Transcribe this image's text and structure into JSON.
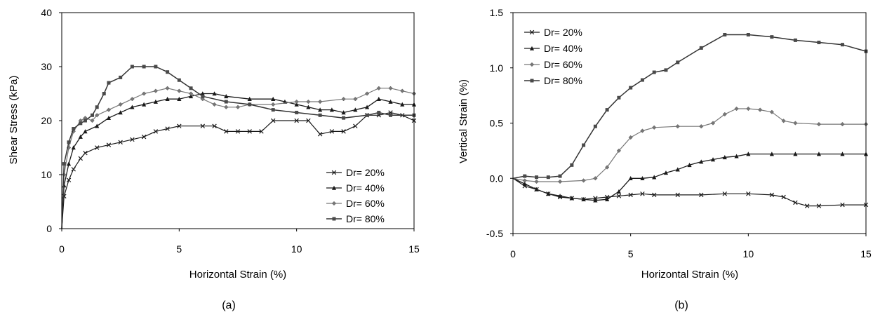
{
  "chart_data": [
    {
      "type": "line",
      "panel_label": "(a)",
      "xlabel": "Horizontal Strain (%)",
      "ylabel": "Shear Stress (kPa)",
      "xlim": [
        0,
        15
      ],
      "ylim": [
        0,
        40
      ],
      "xticks": [
        "0",
        "5",
        "10",
        "15"
      ],
      "yticks": [
        "0",
        "10",
        "20",
        "30",
        "40"
      ],
      "grid": false,
      "legend_position": "bottom-right",
      "series": [
        {
          "name": "Dr= 20%",
          "marker": "x",
          "x": [
            0,
            0.1,
            0.3,
            0.5,
            0.8,
            1.0,
            1.5,
            2.0,
            2.5,
            3.0,
            3.5,
            4.0,
            4.5,
            5.0,
            6.0,
            6.5,
            7.0,
            7.5,
            8.0,
            8.5,
            9.0,
            10.0,
            10.5,
            11.0,
            11.5,
            12.0,
            12.5,
            13.0,
            13.5,
            14.0,
            14.5,
            15.0
          ],
          "y": [
            0,
            6,
            9,
            11,
            13,
            14,
            15,
            15.5,
            16,
            16.5,
            17,
            18,
            18.5,
            19,
            19,
            19,
            18,
            18,
            18,
            18,
            20,
            20,
            20,
            17.5,
            18,
            18,
            19,
            21,
            21,
            21.5,
            21,
            20
          ]
        },
        {
          "name": "Dr= 40%",
          "marker": "triangle",
          "x": [
            0,
            0.1,
            0.3,
            0.5,
            0.8,
            1.0,
            1.5,
            2.0,
            2.5,
            3.0,
            3.5,
            4.0,
            4.5,
            5.0,
            5.5,
            6.0,
            6.5,
            7.0,
            8.0,
            9.0,
            9.5,
            10.0,
            10.5,
            11.0,
            11.5,
            12.0,
            12.5,
            13.0,
            13.5,
            14.0,
            14.5,
            15.0
          ],
          "y": [
            0,
            8,
            12,
            15,
            17,
            18,
            19,
            20.5,
            21.5,
            22.5,
            23,
            23.5,
            24,
            24,
            24.5,
            25,
            25,
            24.5,
            24,
            24,
            23.5,
            23,
            22.5,
            22,
            22,
            21.5,
            22,
            22.5,
            24,
            23.5,
            23,
            23
          ]
        },
        {
          "name": "Dr= 60%",
          "marker": "diamond",
          "x": [
            0,
            0.1,
            0.3,
            0.5,
            0.8,
            1.0,
            1.3,
            1.5,
            2.0,
            2.5,
            3.0,
            3.5,
            4.0,
            4.5,
            5.0,
            5.5,
            6.0,
            6.5,
            7.0,
            7.5,
            8.0,
            9.0,
            10.0,
            10.5,
            11.0,
            12.0,
            12.5,
            13.0,
            13.5,
            14.0,
            14.5,
            15.0
          ],
          "y": [
            0,
            10,
            15,
            18,
            20,
            20.5,
            20,
            21,
            22,
            23,
            24,
            25,
            25.5,
            26,
            25.5,
            25,
            24,
            23,
            22.5,
            22.5,
            23,
            23,
            23.5,
            23.5,
            23.5,
            24,
            24,
            25,
            26,
            26,
            25.5,
            25
          ]
        },
        {
          "name": "Dr= 80%",
          "marker": "square",
          "x": [
            0,
            0.1,
            0.3,
            0.5,
            0.8,
            1.0,
            1.3,
            1.5,
            1.8,
            2.0,
            2.5,
            3.0,
            3.5,
            4.0,
            4.5,
            5.0,
            5.5,
            6.0,
            7.0,
            8.0,
            9.0,
            10.0,
            11.0,
            12.0,
            13.0,
            13.5,
            14.0,
            15.0
          ],
          "y": [
            0,
            12,
            16,
            18.5,
            19.5,
            20,
            21,
            22.5,
            25,
            27,
            28,
            30,
            30,
            30,
            29,
            27.5,
            26,
            24.5,
            23.5,
            23,
            22,
            21.5,
            21,
            20.5,
            21,
            21.5,
            21,
            21
          ]
        }
      ]
    },
    {
      "type": "line",
      "panel_label": "(b)",
      "xlabel": "Horizontal Strain (%)",
      "ylabel": "Vertical Strain (%)",
      "xlim": [
        0,
        15
      ],
      "ylim": [
        -0.5,
        1.5
      ],
      "xticks": [
        "0",
        "5",
        "10",
        "15"
      ],
      "yticks": [
        "-0.5",
        "0.0",
        "0.5",
        "1.0",
        "1.5"
      ],
      "grid": false,
      "legend_position": "top-left",
      "series": [
        {
          "name": "Dr= 20%",
          "marker": "x",
          "x": [
            0,
            0.5,
            1.0,
            1.5,
            2.0,
            2.5,
            3.0,
            3.5,
            4.0,
            4.5,
            5.0,
            5.5,
            6.0,
            7.0,
            8.0,
            9.0,
            10.0,
            11.0,
            11.5,
            12.0,
            12.5,
            13.0,
            14.0,
            15.0
          ],
          "y": [
            0,
            -0.07,
            -0.1,
            -0.14,
            -0.17,
            -0.18,
            -0.19,
            -0.18,
            -0.17,
            -0.16,
            -0.15,
            -0.14,
            -0.15,
            -0.15,
            -0.15,
            -0.14,
            -0.14,
            -0.15,
            -0.17,
            -0.22,
            -0.25,
            -0.25,
            -0.24,
            -0.24
          ]
        },
        {
          "name": "Dr= 40%",
          "marker": "triangle",
          "x": [
            0,
            0.5,
            1.0,
            1.5,
            2.0,
            2.5,
            3.0,
            3.5,
            4.0,
            4.5,
            5.0,
            5.5,
            6.0,
            6.5,
            7.0,
            7.5,
            8.0,
            8.5,
            9.0,
            9.5,
            10.0,
            11.0,
            12.0,
            13.0,
            14.0,
            15.0
          ],
          "y": [
            0,
            -0.05,
            -0.1,
            -0.14,
            -0.16,
            -0.18,
            -0.19,
            -0.2,
            -0.19,
            -0.12,
            0.0,
            0.0,
            0.01,
            0.05,
            0.08,
            0.12,
            0.15,
            0.17,
            0.19,
            0.2,
            0.22,
            0.22,
            0.22,
            0.22,
            0.22,
            0.22
          ]
        },
        {
          "name": "Dr= 60%",
          "marker": "diamond",
          "x": [
            0,
            0.5,
            1.0,
            2.0,
            3.0,
            3.5,
            4.0,
            4.5,
            5.0,
            5.5,
            6.0,
            7.0,
            8.0,
            8.5,
            9.0,
            9.5,
            10.0,
            10.5,
            11.0,
            11.5,
            12.0,
            13.0,
            14.0,
            15.0
          ],
          "y": [
            0,
            -0.02,
            -0.03,
            -0.03,
            -0.02,
            0.0,
            0.1,
            0.25,
            0.37,
            0.43,
            0.46,
            0.47,
            0.47,
            0.5,
            0.58,
            0.63,
            0.63,
            0.62,
            0.6,
            0.52,
            0.5,
            0.49,
            0.49,
            0.49
          ]
        },
        {
          "name": "Dr= 80%",
          "marker": "square",
          "x": [
            0,
            0.5,
            1.0,
            1.5,
            2.0,
            2.5,
            3.0,
            3.5,
            4.0,
            4.5,
            5.0,
            5.5,
            6.0,
            6.5,
            7.0,
            8.0,
            9.0,
            10.0,
            11.0,
            12.0,
            13.0,
            14.0,
            15.0
          ],
          "y": [
            0,
            0.02,
            0.01,
            0.01,
            0.02,
            0.12,
            0.3,
            0.47,
            0.62,
            0.73,
            0.82,
            0.89,
            0.96,
            0.98,
            1.05,
            1.18,
            1.3,
            1.3,
            1.28,
            1.25,
            1.23,
            1.21,
            1.15
          ]
        }
      ]
    }
  ]
}
